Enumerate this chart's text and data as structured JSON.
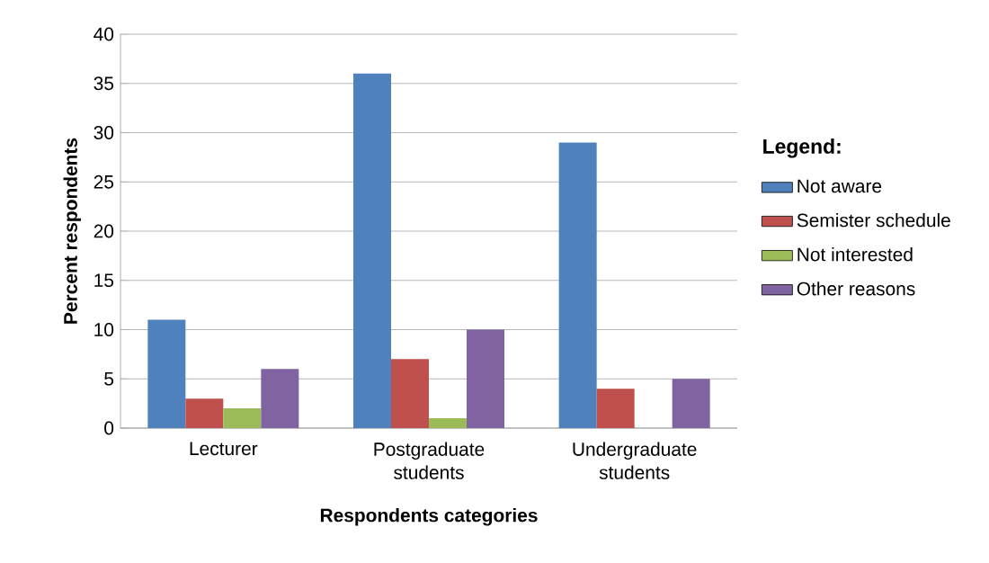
{
  "chart_data": {
    "type": "bar",
    "xlabel": "Respondents categories",
    "ylabel": "Percent respondents",
    "legend_title": "Legend:",
    "categories": [
      "Lecturer",
      "Postgraduate students",
      "Undergraduate students"
    ],
    "series": [
      {
        "name": "Not aware",
        "color": "#4f81bd",
        "values": [
          11,
          36,
          29
        ]
      },
      {
        "name": "Semister schedule",
        "color": "#c0504d",
        "values": [
          3,
          7,
          4
        ]
      },
      {
        "name": "Not interested",
        "color": "#9bbb59",
        "values": [
          2,
          1,
          0
        ]
      },
      {
        "name": "Other reasons",
        "color": "#8064a2",
        "values": [
          6,
          10,
          5
        ]
      }
    ],
    "ylim": [
      0,
      40
    ],
    "yticks": [
      0,
      5,
      10,
      15,
      20,
      25,
      30,
      35,
      40
    ],
    "grid": "y",
    "legend": "right"
  }
}
